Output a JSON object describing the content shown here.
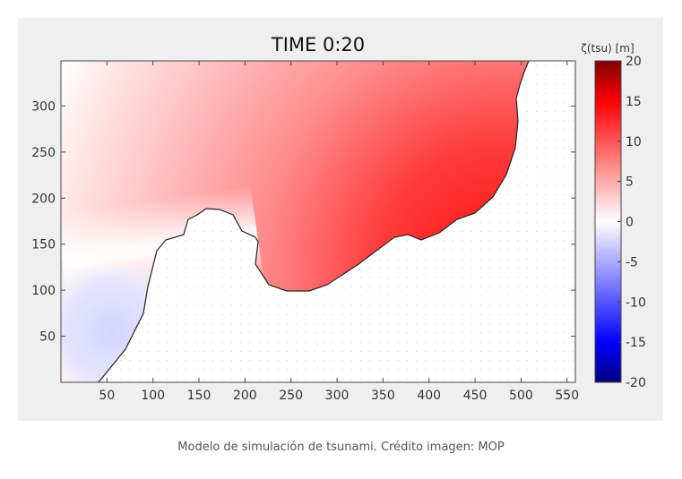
{
  "chart_data": {
    "type": "heatmap",
    "title": "TIME 0:20",
    "xlabel": "",
    "ylabel": "",
    "xlim": [
      0,
      559
    ],
    "ylim": [
      0,
      349
    ],
    "xticks": [
      50,
      100,
      150,
      200,
      250,
      300,
      350,
      400,
      450,
      500,
      550
    ],
    "yticks": [
      50,
      100,
      150,
      200,
      250,
      300
    ],
    "colorbar": {
      "label": "ζ(tsu) [m]",
      "range": [
        -20,
        20
      ],
      "ticks": [
        20,
        15,
        10,
        5,
        0,
        -5,
        -10,
        -15,
        -20
      ],
      "colormap": [
        "#000080",
        "#0000ff",
        "#ffffff",
        "#ff0000",
        "#800000"
      ]
    },
    "field_summary": {
      "max_region": "near east coast, ~ +12 m",
      "min_region": "southwest near x 50-100, y 30-80, ~ -2 m"
    }
  },
  "caption": "Modelo de simulación de tsunami. Crédito imagen: MOP"
}
